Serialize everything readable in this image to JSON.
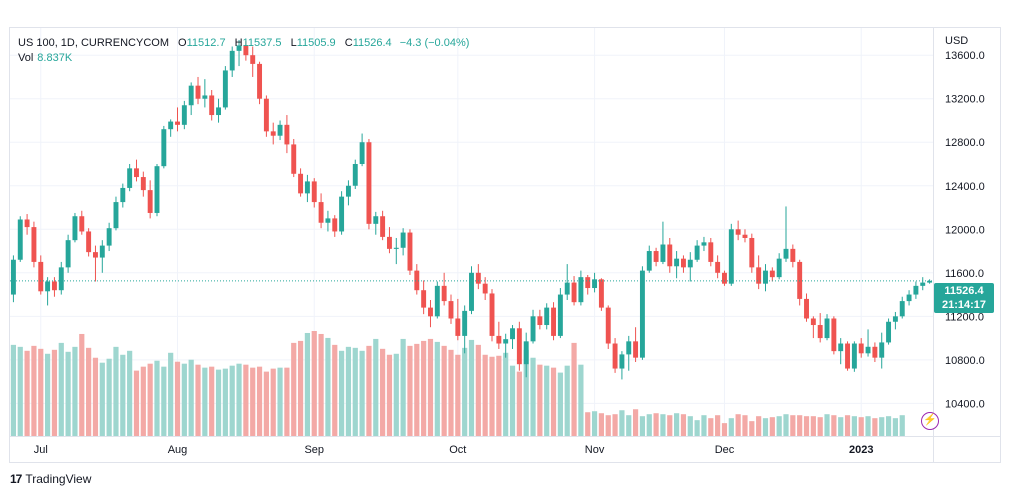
{
  "legend": {
    "symbol": "US 100, 1D, CURRENCYCOM",
    "o_label": "O",
    "o_value": "11512.7",
    "h_label": "H",
    "h_value": "11537.5",
    "l_label": "L",
    "l_value": "11505.9",
    "c_label": "C",
    "c_value": "11526.4",
    "change": "−4.3 (−0.04%)",
    "vol_label": "Vol",
    "vol_value": "8.837K"
  },
  "axis_currency": "USD",
  "last_price": {
    "price": "11526.4",
    "countdown": "21:14:17"
  },
  "branding": {
    "name": "TradingView",
    "mark": "17"
  },
  "colors": {
    "up": "#26a69a",
    "down": "#ef5350",
    "up_vol": "#9ed6cf",
    "down_vol": "#f3a9a6",
    "grid": "#f0f3fa"
  },
  "chart_data": {
    "type": "candlestick",
    "y_ticks": [
      10400,
      10800,
      11200,
      11600,
      12000,
      12400,
      12800,
      13200,
      13600
    ],
    "y_tick_labels": [
      "10400.0",
      "10800.0",
      "11200.0",
      "11600.0",
      "12000.0",
      "12400.0",
      "12800.0",
      "13200.0",
      "13600.0"
    ],
    "ylim": [
      10100,
      13850
    ],
    "x_labels": [
      {
        "label": "Jul",
        "index": 4
      },
      {
        "label": "Aug",
        "index": 24
      },
      {
        "label": "Sep",
        "index": 44
      },
      {
        "label": "Oct",
        "index": 65
      },
      {
        "label": "Nov",
        "index": 85
      },
      {
        "label": "Dec",
        "index": 104
      },
      {
        "label": "2023",
        "index": 124
      }
    ],
    "ohlc": [
      [
        11400,
        11760,
        11330,
        11720
      ],
      [
        11720,
        12120,
        11700,
        12090
      ],
      [
        12090,
        12140,
        11950,
        12020
      ],
      [
        12020,
        12070,
        11650,
        11700
      ],
      [
        11700,
        11760,
        11400,
        11430
      ],
      [
        11430,
        11560,
        11300,
        11520
      ],
      [
        11520,
        11560,
        11380,
        11440
      ],
      [
        11440,
        11700,
        11400,
        11650
      ],
      [
        11650,
        11950,
        11600,
        11900
      ],
      [
        11900,
        12150,
        11880,
        12120
      ],
      [
        12120,
        12170,
        11950,
        11980
      ],
      [
        11980,
        12010,
        11750,
        11790
      ],
      [
        11790,
        11850,
        11520,
        11740
      ],
      [
        11740,
        11900,
        11600,
        11850
      ],
      [
        11850,
        12060,
        11800,
        12010
      ],
      [
        12010,
        12300,
        11990,
        12250
      ],
      [
        12250,
        12420,
        12200,
        12380
      ],
      [
        12380,
        12600,
        12350,
        12560
      ],
      [
        12560,
        12640,
        12440,
        12480
      ],
      [
        12480,
        12530,
        12300,
        12360
      ],
      [
        12360,
        12450,
        12100,
        12150
      ],
      [
        12150,
        12600,
        12120,
        12580
      ],
      [
        12580,
        12950,
        12560,
        12920
      ],
      [
        12920,
        13010,
        12850,
        12990
      ],
      [
        12990,
        13120,
        12900,
        12960
      ],
      [
        12960,
        13180,
        12920,
        13140
      ],
      [
        13140,
        13350,
        13050,
        13320
      ],
      [
        13320,
        13400,
        13150,
        13200
      ],
      [
        13200,
        13380,
        13120,
        13230
      ],
      [
        13230,
        13280,
        13000,
        13050
      ],
      [
        13050,
        13200,
        12980,
        13120
      ],
      [
        13120,
        13500,
        13100,
        13460
      ],
      [
        13460,
        13680,
        13400,
        13640
      ],
      [
        13640,
        13740,
        13500,
        13690
      ],
      [
        13690,
        13730,
        13550,
        13600
      ],
      [
        13600,
        13680,
        13400,
        13520
      ],
      [
        13520,
        13540,
        13150,
        13200
      ],
      [
        13200,
        13230,
        12850,
        12900
      ],
      [
        12900,
        12980,
        12780,
        12860
      ],
      [
        12860,
        13000,
        12820,
        12960
      ],
      [
        12960,
        13050,
        12700,
        12780
      ],
      [
        12780,
        12830,
        12480,
        12510
      ],
      [
        12510,
        12560,
        12300,
        12330
      ],
      [
        12330,
        12500,
        12250,
        12440
      ],
      [
        12440,
        12470,
        12200,
        12250
      ],
      [
        12250,
        12330,
        12010,
        12060
      ],
      [
        12060,
        12170,
        11980,
        12100
      ],
      [
        12100,
        12130,
        11930,
        11980
      ],
      [
        11980,
        12350,
        11950,
        12300
      ],
      [
        12300,
        12450,
        12220,
        12400
      ],
      [
        12400,
        12640,
        12370,
        12600
      ],
      [
        12600,
        12880,
        12580,
        12800
      ],
      [
        12800,
        12830,
        12000,
        12050
      ],
      [
        12050,
        12160,
        11950,
        12120
      ],
      [
        12120,
        12170,
        11900,
        11930
      ],
      [
        11930,
        12020,
        11780,
        11820
      ],
      [
        11820,
        11920,
        11680,
        11830
      ],
      [
        11830,
        12010,
        11760,
        11970
      ],
      [
        11970,
        12000,
        11580,
        11620
      ],
      [
        11620,
        11680,
        11400,
        11440
      ],
      [
        11440,
        11530,
        11220,
        11280
      ],
      [
        11280,
        11350,
        11100,
        11200
      ],
      [
        11200,
        11520,
        11180,
        11480
      ],
      [
        11480,
        11600,
        11300,
        11340
      ],
      [
        11340,
        11400,
        11130,
        11180
      ],
      [
        11180,
        11360,
        10980,
        11020
      ],
      [
        11020,
        11300,
        10860,
        11250
      ],
      [
        11250,
        11660,
        11220,
        11600
      ],
      [
        11600,
        11680,
        11450,
        11500
      ],
      [
        11500,
        11560,
        11350,
        11410
      ],
      [
        11410,
        11450,
        10970,
        11020
      ],
      [
        11020,
        11150,
        10900,
        10950
      ],
      [
        10950,
        11040,
        10820,
        10990
      ],
      [
        10990,
        11120,
        10900,
        11090
      ],
      [
        11090,
        11150,
        10700,
        10760
      ],
      [
        10760,
        11050,
        10640,
        10970
      ],
      [
        10970,
        11260,
        10950,
        11200
      ],
      [
        11200,
        11260,
        11080,
        11120
      ],
      [
        11120,
        11320,
        11080,
        11280
      ],
      [
        11280,
        11330,
        10980,
        11020
      ],
      [
        11020,
        11460,
        11000,
        11400
      ],
      [
        11400,
        11680,
        11350,
        11510
      ],
      [
        11510,
        11570,
        11300,
        11330
      ],
      [
        11330,
        11620,
        11300,
        11560
      ],
      [
        11560,
        11580,
        11400,
        11460
      ],
      [
        11460,
        11600,
        11420,
        11540
      ],
      [
        11540,
        11550,
        11250,
        11280
      ],
      [
        11280,
        11300,
        10900,
        10950
      ],
      [
        10950,
        11000,
        10680,
        10720
      ],
      [
        10720,
        10880,
        10620,
        10850
      ],
      [
        10850,
        11020,
        10700,
        10970
      ],
      [
        10970,
        11100,
        10780,
        10820
      ],
      [
        10820,
        11660,
        10800,
        11620
      ],
      [
        11620,
        11850,
        11600,
        11800
      ],
      [
        11800,
        11830,
        11660,
        11700
      ],
      [
        11700,
        12070,
        11680,
        11860
      ],
      [
        11860,
        11920,
        11600,
        11660
      ],
      [
        11660,
        11800,
        11550,
        11730
      ],
      [
        11730,
        11760,
        11600,
        11650
      ],
      [
        11650,
        11790,
        11520,
        11720
      ],
      [
        11720,
        11900,
        11700,
        11850
      ],
      [
        11850,
        11930,
        11800,
        11880
      ],
      [
        11880,
        11920,
        11660,
        11700
      ],
      [
        11700,
        11760,
        11550,
        11600
      ],
      [
        11600,
        11620,
        11480,
        11500
      ],
      [
        11500,
        12050,
        11480,
        12000
      ],
      [
        12000,
        12080,
        11900,
        11950
      ],
      [
        11950,
        12000,
        11880,
        11920
      ],
      [
        11920,
        11960,
        11600,
        11650
      ],
      [
        11650,
        11760,
        11450,
        11500
      ],
      [
        11500,
        11680,
        11430,
        11620
      ],
      [
        11620,
        11650,
        11520,
        11560
      ],
      [
        11560,
        11780,
        11540,
        11730
      ],
      [
        11730,
        12210,
        11700,
        11820
      ],
      [
        11820,
        11860,
        11650,
        11700
      ],
      [
        11700,
        11720,
        11300,
        11360
      ],
      [
        11360,
        11410,
        11150,
        11180
      ],
      [
        11180,
        11200,
        11000,
        11120
      ],
      [
        11120,
        11230,
        10960,
        11000
      ],
      [
        11000,
        11220,
        10980,
        11180
      ],
      [
        11180,
        11200,
        10850,
        10880
      ],
      [
        10880,
        11000,
        10760,
        10950
      ],
      [
        10950,
        10970,
        10700,
        10720
      ],
      [
        10720,
        10970,
        10690,
        10950
      ],
      [
        10950,
        11000,
        10820,
        10860
      ],
      [
        10860,
        11080,
        10830,
        10920
      ],
      [
        10920,
        10960,
        10780,
        10820
      ],
      [
        10820,
        11050,
        10720,
        10960
      ],
      [
        10960,
        11180,
        10940,
        11150
      ],
      [
        11150,
        11240,
        11080,
        11200
      ],
      [
        11200,
        11380,
        11180,
        11340
      ],
      [
        11340,
        11440,
        11300,
        11400
      ],
      [
        11400,
        11520,
        11360,
        11480
      ],
      [
        11480,
        11560,
        11440,
        11510
      ],
      [
        11510,
        11540,
        11500,
        11526
      ]
    ],
    "volume": [
      9.2,
      9.0,
      8.6,
      9.1,
      8.8,
      8.3,
      8.7,
      9.4,
      8.5,
      9.0,
      10.3,
      8.9,
      7.9,
      7.4,
      7.8,
      9.0,
      8.2,
      8.6,
      6.6,
      7.0,
      7.3,
      7.6,
      7.0,
      8.4,
      7.5,
      7.3,
      7.7,
      7.2,
      6.9,
      7.0,
      6.7,
      6.8,
      7.1,
      7.3,
      7.2,
      6.9,
      7.0,
      6.5,
      6.8,
      6.9,
      6.9,
      9.4,
      9.6,
      10.4,
      10.6,
      10.3,
      9.9,
      9.2,
      8.6,
      9.0,
      8.9,
      8.6,
      9.1,
      9.8,
      8.8,
      8.2,
      8.3,
      9.8,
      9.1,
      9.3,
      9.6,
      9.8,
      9.5,
      9.1,
      8.7,
      8.2,
      8.9,
      9.7,
      9.2,
      8.2,
      8.0,
      8.1,
      8.4,
      7.1,
      6.5,
      8.7,
      7.9,
      7.2,
      7.1,
      6.9,
      6.4,
      7.1,
      9.4,
      7.2,
      2.4,
      2.5,
      2.3,
      2.1,
      2.2,
      2.6,
      2.1,
      2.7,
      2.0,
      2.2,
      2.3,
      2.2,
      2.1,
      2.3,
      2.2,
      2.0,
      1.6,
      2.1,
      1.8,
      2.1,
      1.3,
      1.8,
      2.2,
      2.1,
      1.5,
      2.0,
      1.8,
      1.9,
      2.0,
      2.2,
      2.1,
      2.1,
      2.0,
      2.0,
      1.9,
      2.2,
      2.1,
      1.9,
      2.1,
      2.0,
      1.9,
      2.0,
      1.8,
      1.9,
      2.0,
      1.8,
      2.1
    ]
  }
}
